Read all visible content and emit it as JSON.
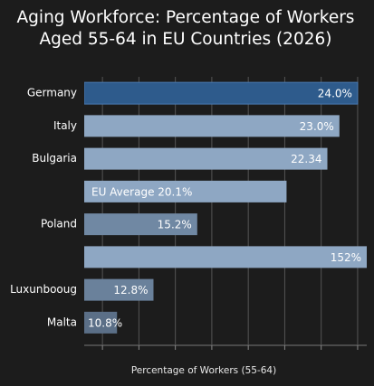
{
  "chart_data": {
    "type": "barh",
    "title": [
      "Aging Workforce: Percentage of Workers",
      "Aged 55-64 in EU Countries (2026)"
    ],
    "x_label": "Percentage of Workers (55-64)",
    "categories": [
      "Germany",
      "Italy",
      "Bulgaria",
      null,
      "Poland",
      null,
      "Luxunbooug",
      "Malta"
    ],
    "values": [
      24.0,
      23.0,
      22.34,
      20.1,
      15.2,
      152,
      12.8,
      10.8
    ],
    "value_labels": [
      "24.0%",
      "23.0%",
      "22.34",
      "EU Average 20.1%",
      "15.2%",
      "152%",
      "12.8%",
      "10.8%"
    ],
    "colors": [
      "#2e5b8c",
      "#8ea7c3",
      "#8ea7c3",
      "#8ea7c3",
      "#7088a3",
      "#8ea7c3",
      "#6a819b",
      "#5b6f87"
    ],
    "xlim": [
      9,
      24.5
    ],
    "xticks": [
      10,
      12,
      14,
      16,
      18,
      20,
      22,
      24
    ],
    "grid": true
  }
}
